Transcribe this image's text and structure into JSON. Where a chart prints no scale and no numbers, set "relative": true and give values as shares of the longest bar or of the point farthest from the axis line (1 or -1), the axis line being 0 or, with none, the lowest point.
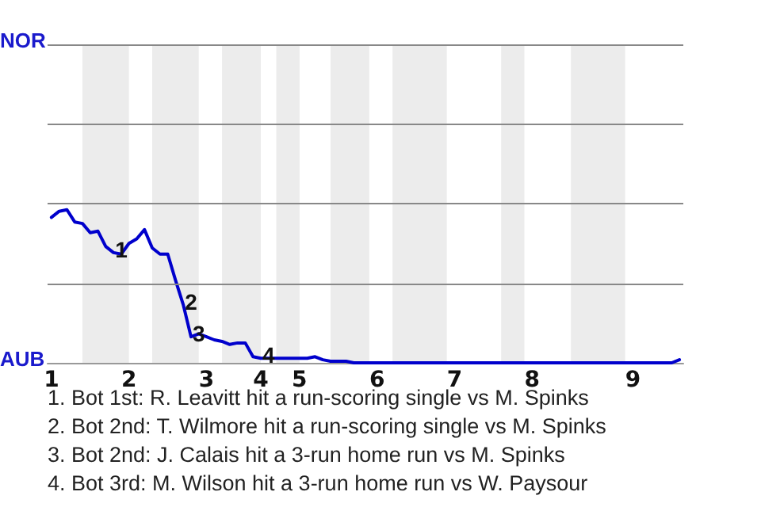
{
  "chart_data": {
    "type": "line",
    "relative": true,
    "categories": [
      "1",
      null,
      null,
      null,
      null,
      null,
      null,
      null,
      null,
      null,
      "2",
      null,
      null,
      null,
      null,
      null,
      null,
      null,
      null,
      null,
      "3",
      null,
      null,
      null,
      null,
      null,
      null,
      "4",
      null,
      null,
      null,
      null,
      "5",
      null,
      null,
      null,
      null,
      null,
      null,
      null,
      null,
      null,
      "6",
      null,
      null,
      null,
      null,
      null,
      null,
      null,
      null,
      null,
      "7",
      null,
      null,
      null,
      null,
      null,
      null,
      null,
      null,
      null,
      "8",
      null,
      null,
      null,
      null,
      null,
      null,
      null,
      null,
      null,
      null,
      null,
      null,
      "9",
      null,
      null,
      null,
      null,
      null,
      null
    ],
    "series": [
      {
        "color": "#0000cc",
        "values": [
          0.95,
          0.99,
          1,
          0.92,
          0.91,
          0.85,
          0.86,
          0.76,
          0.72,
          0.71,
          0.78,
          0.81,
          0.87,
          0.75,
          0.71,
          0.71,
          0.54,
          0.38,
          0.17,
          0.19,
          0.17,
          0.15,
          0.14,
          0.12,
          0.13,
          0.13,
          0.04,
          0.03,
          0.03,
          0.03,
          0.03,
          0.03,
          0.03,
          0.03,
          0.04,
          0.02,
          0.01,
          0.01,
          0.01,
          0,
          0,
          0,
          0,
          0,
          0,
          0,
          0,
          0,
          0,
          0,
          0,
          0,
          0,
          0,
          0,
          0,
          0,
          0,
          0,
          0,
          0,
          0,
          0,
          0,
          0,
          0,
          0,
          0,
          0,
          0,
          0,
          0,
          0,
          0,
          0,
          0,
          0,
          0,
          0,
          0,
          0,
          0.02
        ]
      }
    ],
    "marker": "none",
    "line_style": "solid",
    "ref_lines": [
      {
        "axis": "y",
        "value": 0.52,
        "color": "#888888"
      },
      {
        "axis": "y",
        "value": 1.04,
        "color": "#888888"
      },
      {
        "axis": "y",
        "value": 1.56,
        "color": "#888888"
      },
      {
        "axis": "y",
        "value": 2.08,
        "color": "#888888"
      }
    ],
    "annotations": [
      {
        "text": "1",
        "y": 0.72
      },
      {
        "text": "2",
        "y": 0.38
      },
      {
        "text": "3",
        "y": 0.17
      },
      {
        "text": "4",
        "y": 0.03
      },
      "NOR",
      "AUB",
      "1. Bot 1st: R. Leavitt hit a run-scoring single vs M. Spinks",
      "2. Bot 2nd: T. Wilmore hit a run-scoring single vs M. Spinks",
      "3. Bot 2nd: J. Calais hit a 3-run home run vs M. Spinks",
      "4. Bot 3rd: M. Wilson hit a 3-run home run vs W. Paysour"
    ]
  }
}
